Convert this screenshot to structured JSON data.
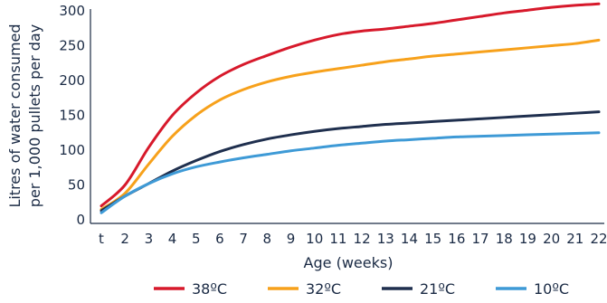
{
  "chart_data": {
    "type": "line",
    "title": "",
    "xlabel": "Age (weeks)",
    "ylabel_lines": [
      "Litres of water consumed",
      "per 1,000 pullets per day"
    ],
    "x_ticks": [
      "t",
      "2",
      "3",
      "4",
      "5",
      "6",
      "7",
      "8",
      "9",
      "10",
      "11",
      "12",
      "13",
      "14",
      "15",
      "16",
      "17",
      "18",
      "19",
      "20",
      "21",
      "22"
    ],
    "x": [
      1,
      2,
      3,
      4,
      5,
      6,
      7,
      8,
      9,
      10,
      11,
      12,
      13,
      14,
      15,
      16,
      17,
      18,
      19,
      20,
      21,
      22
    ],
    "y_ticks": [
      0,
      50,
      100,
      150,
      200,
      250,
      300
    ],
    "ylim": [
      0,
      300
    ],
    "xlim": [
      1,
      22
    ],
    "grid": false,
    "legend_position": "bottom",
    "series": [
      {
        "name": "38ºC",
        "color": "#d7192b",
        "values": [
          20,
          50,
          104,
          150,
          182,
          206,
          223,
          236,
          248,
          258,
          266,
          271,
          274,
          278,
          282,
          287,
          292,
          297,
          301,
          305,
          308,
          310
        ]
      },
      {
        "name": "32ºC",
        "color": "#f7a11b",
        "values": [
          15,
          38,
          80,
          120,
          150,
          172,
          187,
          198,
          206,
          212,
          217,
          222,
          227,
          231,
          235,
          238,
          241,
          244,
          247,
          250,
          253,
          258
        ]
      },
      {
        "name": "21ºC",
        "color": "#1f2f4e",
        "values": [
          13,
          34,
          52,
          70,
          85,
          98,
          108,
          116,
          122,
          127,
          131,
          134,
          137,
          139,
          141,
          143,
          145,
          147,
          149,
          151,
          153,
          155
        ]
      },
      {
        "name": "10ºC",
        "color": "#3e9ad6",
        "values": [
          10,
          34,
          52,
          66,
          76,
          83,
          89,
          94,
          99,
          103,
          107,
          110,
          113,
          115,
          117,
          119,
          120,
          121,
          122,
          123,
          124,
          125
        ]
      }
    ]
  }
}
